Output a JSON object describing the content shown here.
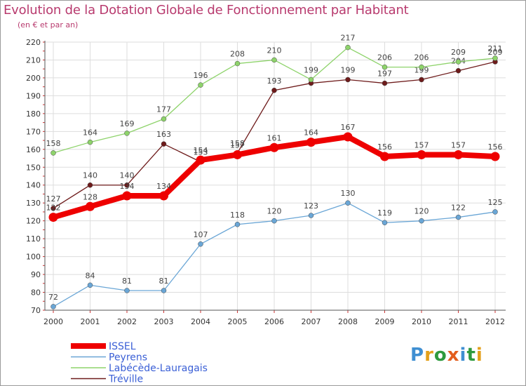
{
  "header": {
    "title": "Evolution de la Dotation Globale de Fonctionnement par Habitant",
    "subtitle": "(en € et par an)"
  },
  "logo": {
    "text": "Proxiti",
    "letters": [
      "P",
      "r",
      "o",
      "x",
      "i",
      "t",
      "i"
    ],
    "colors": [
      "#3f8fd2",
      "#e3a01b",
      "#2e9a3e",
      "#e35e1d",
      "#3f8fd2",
      "#2e9a3e",
      "#e3a01b"
    ]
  },
  "chart_data": {
    "type": "line",
    "x": [
      "2000",
      "2001",
      "2002",
      "2003",
      "2004",
      "2005",
      "2006",
      "2007",
      "2008",
      "2009",
      "2010",
      "2011",
      "2012"
    ],
    "ylim": [
      70,
      220
    ],
    "yticks": [
      70,
      80,
      90,
      100,
      110,
      120,
      130,
      140,
      150,
      160,
      170,
      180,
      190,
      200,
      210,
      220
    ],
    "grid": true,
    "legend_position": "bottom-left",
    "series": [
      {
        "name": "Tréville",
        "color": "#6e1b1b",
        "values": [
          127,
          140,
          140,
          163,
          153,
          158,
          193,
          197,
          199,
          197,
          199,
          204,
          209
        ],
        "labels": [
          "127",
          "140",
          "140",
          "163",
          "153",
          "158",
          "193",
          "",
          "199",
          "197",
          "199",
          "204",
          "209"
        ]
      },
      {
        "name": "Labécède-Lauragais",
        "color": "#8ed36b",
        "values": [
          158,
          164,
          169,
          177,
          196,
          208,
          210,
          199,
          217,
          206,
          206,
          209,
          211
        ],
        "labels": [
          "158",
          "164",
          "169",
          "177",
          "196",
          "208",
          "210",
          "199",
          "217",
          "206",
          "206",
          "209",
          "211"
        ]
      },
      {
        "name": "Peyrens",
        "color": "#6aa6d6",
        "values": [
          72,
          84,
          81,
          81,
          107,
          118,
          120,
          123,
          130,
          119,
          120,
          122,
          125
        ],
        "labels": [
          "72",
          "84",
          "81",
          "81",
          "107",
          "118",
          "120",
          "123",
          "130",
          "119",
          "120",
          "122",
          "125"
        ]
      },
      {
        "name": "ISSEL",
        "color": "#ee0000",
        "values": [
          122,
          128,
          134,
          134,
          154,
          157,
          161,
          164,
          167,
          156,
          157,
          157,
          156
        ],
        "labels": [
          "122",
          "128",
          "134",
          "134",
          "154",
          "157",
          "161",
          "164",
          "167",
          "156",
          "157",
          "157",
          "156"
        ]
      }
    ],
    "legend": [
      "ISSEL",
      "Peyrens",
      "Labécède-Lauragais",
      "Tréville"
    ]
  }
}
